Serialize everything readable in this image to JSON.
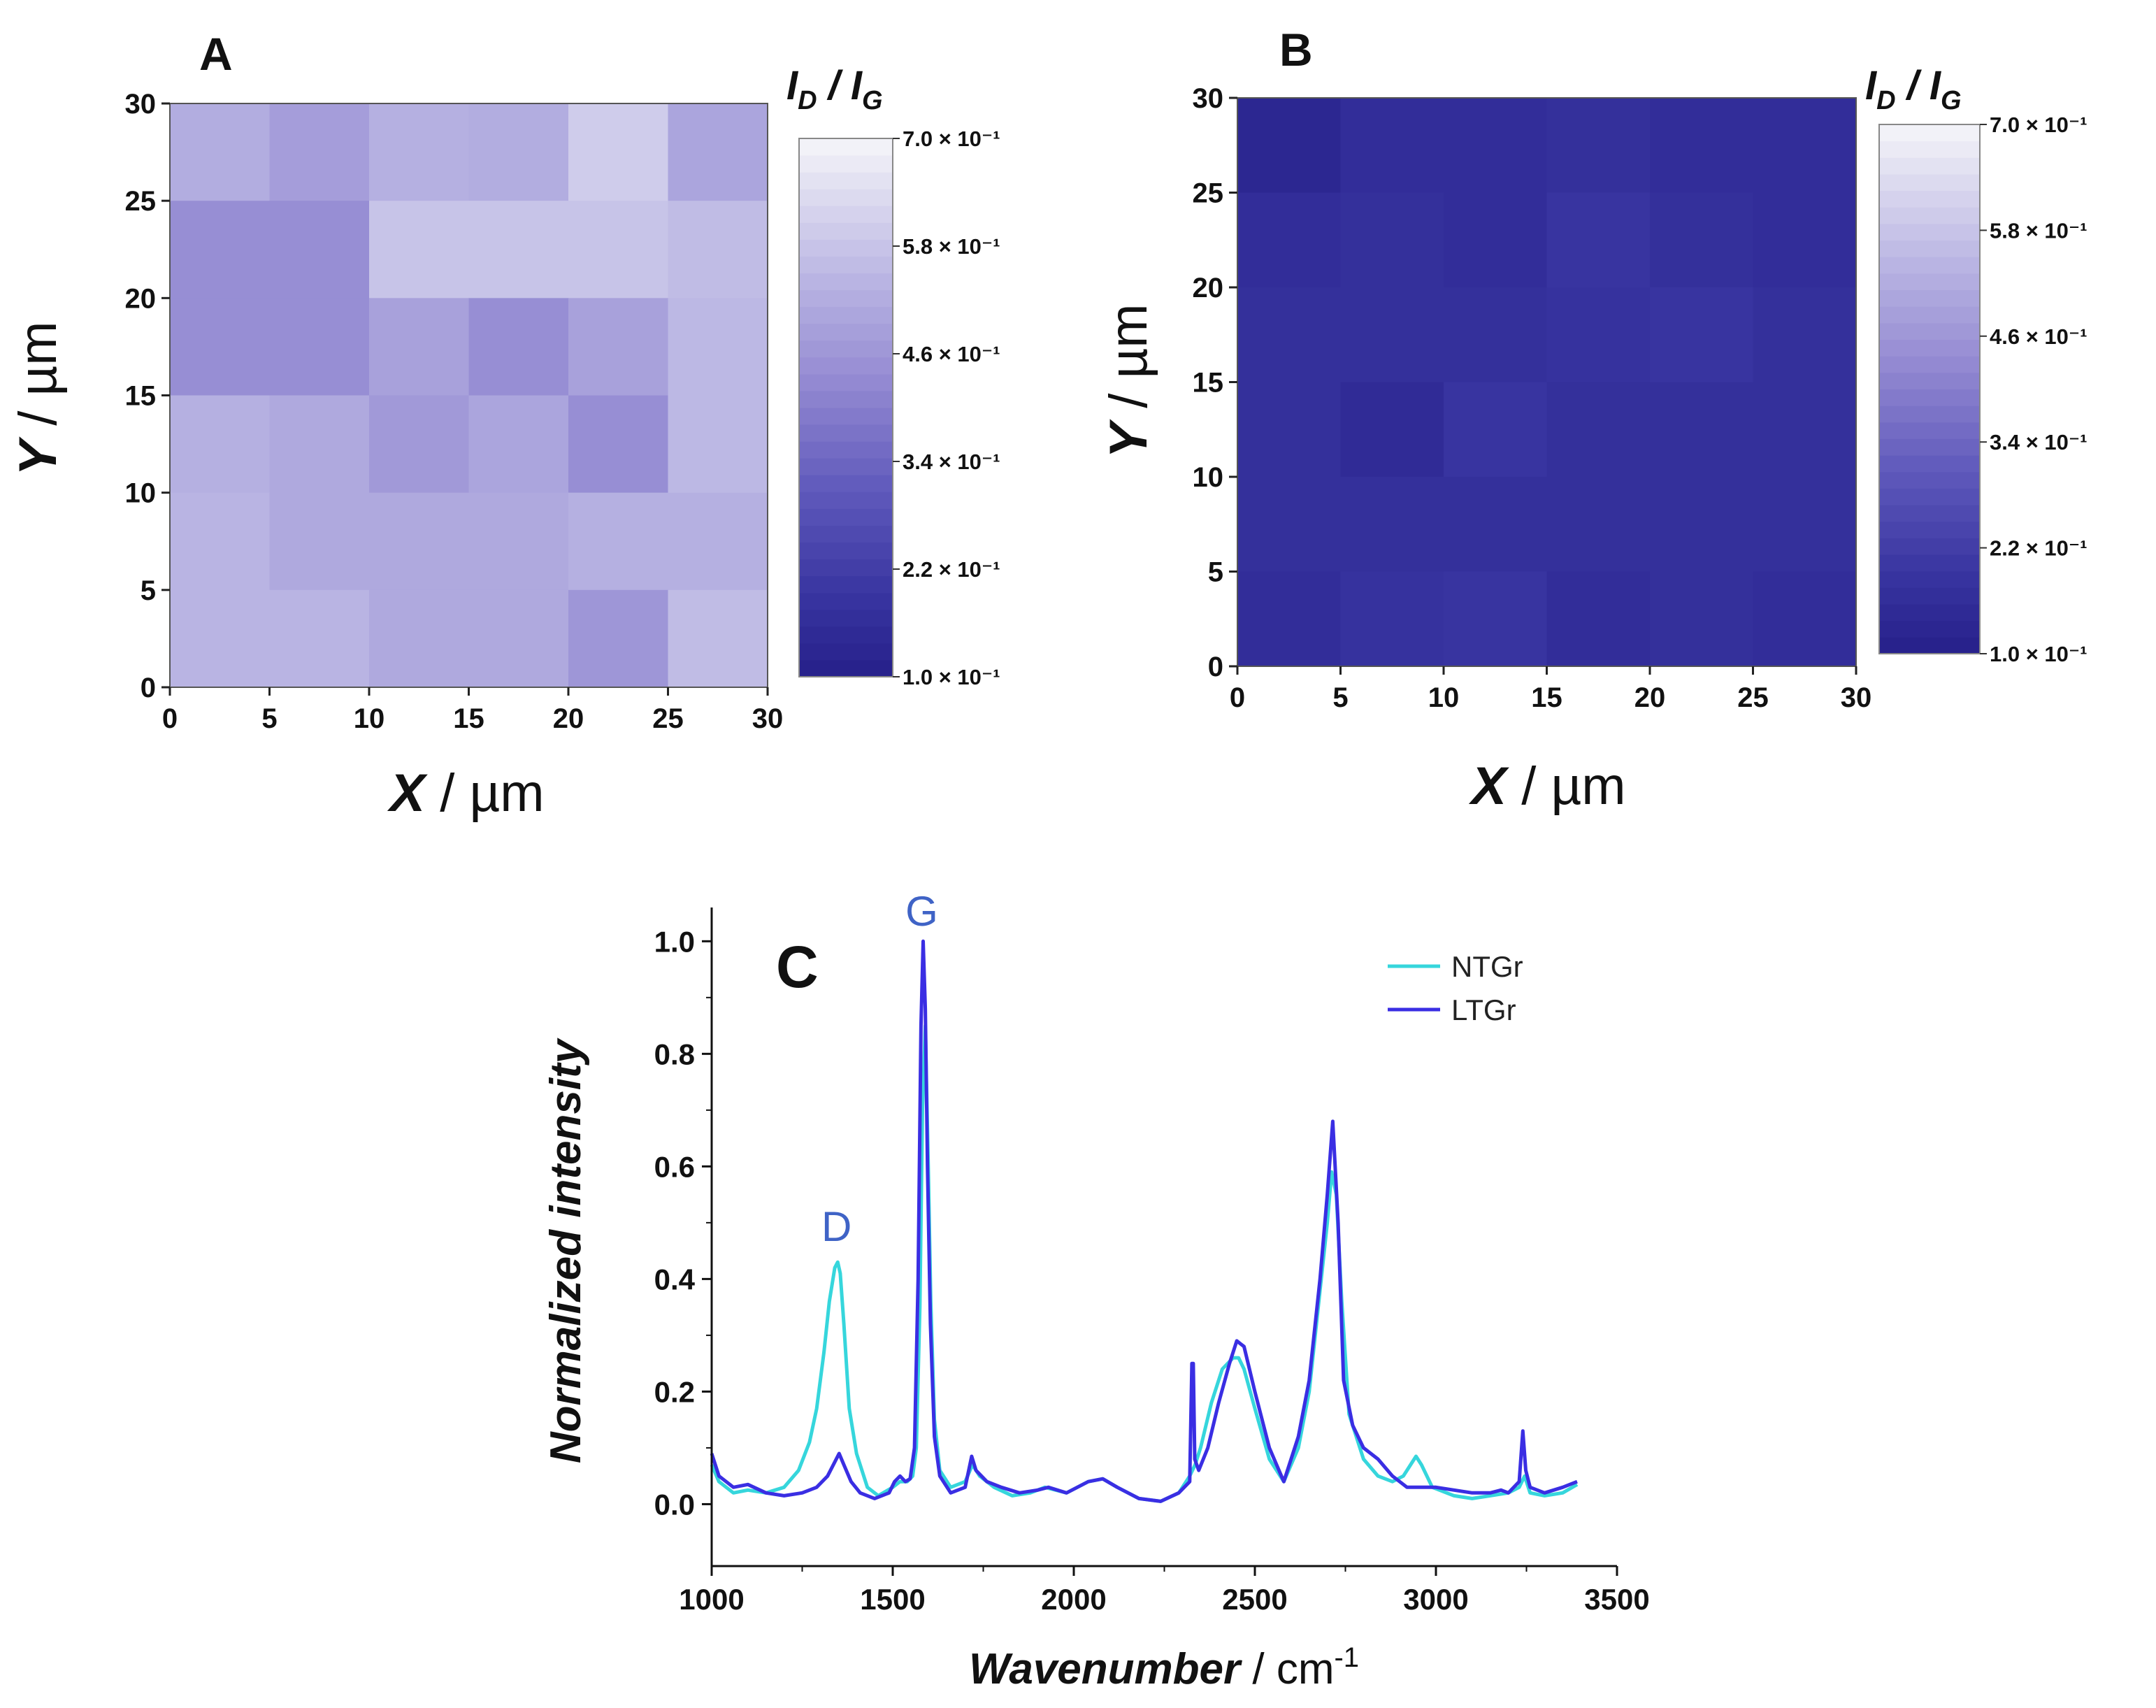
{
  "figure": {
    "panels": [
      "A",
      "B",
      "C"
    ]
  },
  "chart_data": [
    {
      "panel": "A",
      "type": "heatmap",
      "xlabel_var": "X",
      "xlabel_unit": " / µm",
      "ylabel_var": "Y",
      "ylabel_unit": " / µm",
      "x_ticks": [
        "0",
        "5",
        "10",
        "15",
        "20",
        "25",
        "30"
      ],
      "y_ticks": [
        "0",
        "5",
        "10",
        "15",
        "20",
        "25",
        "30"
      ],
      "xlim": [
        0,
        30
      ],
      "ylim": [
        0,
        30
      ],
      "cell_size_um": 5,
      "colorbar_title": "ID / IG",
      "colorbar_title_parts": {
        "I1": "I",
        "sub1": "D",
        "sep": " / ",
        "I2": "I",
        "sub2": "G"
      },
      "colorbar_range": [
        0.1,
        0.7
      ],
      "colorbar_ticks": [
        "1.0 × 10⁻¹",
        "2.2 × 10⁻¹",
        "3.4 × 10⁻¹",
        "4.6 × 10⁻¹",
        "5.8 × 10⁻¹",
        "7.0 × 10⁻¹"
      ],
      "colorbar_tick_values": [
        0.1,
        0.22,
        0.34,
        0.46,
        0.58,
        0.7
      ],
      "grid_rows_top_to_bottom": [
        [
          0.52,
          0.48,
          0.53,
          0.52,
          0.6,
          0.5
        ],
        [
          0.44,
          0.44,
          0.58,
          0.58,
          0.58,
          0.56
        ],
        [
          0.44,
          0.44,
          0.49,
          0.44,
          0.49,
          0.55
        ],
        [
          0.53,
          0.51,
          0.47,
          0.5,
          0.44,
          0.55
        ],
        [
          0.54,
          0.51,
          0.51,
          0.51,
          0.53,
          0.53
        ],
        [
          0.54,
          0.54,
          0.51,
          0.51,
          0.46,
          0.56
        ]
      ]
    },
    {
      "panel": "B",
      "type": "heatmap",
      "xlabel_var": "X",
      "xlabel_unit": " / µm",
      "ylabel_var": "Y",
      "ylabel_unit": " / µm",
      "x_ticks": [
        "0",
        "5",
        "10",
        "15",
        "20",
        "25",
        "30"
      ],
      "y_ticks": [
        "0",
        "5",
        "10",
        "15",
        "20",
        "25",
        "30"
      ],
      "xlim": [
        0,
        30
      ],
      "ylim": [
        0,
        30
      ],
      "cell_size_um": 5,
      "colorbar_title": "ID / IG",
      "colorbar_title_parts": {
        "I1": "I",
        "sub1": "D",
        "sep": " / ",
        "I2": "I",
        "sub2": "G"
      },
      "colorbar_range": [
        0.1,
        0.7
      ],
      "colorbar_ticks": [
        "1.0 × 10⁻¹",
        "2.2 × 10⁻¹",
        "3.4 × 10⁻¹",
        "4.6 × 10⁻¹",
        "5.8 × 10⁻¹",
        "7.0 × 10⁻¹"
      ],
      "colorbar_tick_values": [
        0.1,
        0.22,
        0.34,
        0.46,
        0.58,
        0.7
      ],
      "grid_rows_top_to_bottom": [
        [
          0.13,
          0.16,
          0.16,
          0.17,
          0.16,
          0.16
        ],
        [
          0.16,
          0.17,
          0.16,
          0.19,
          0.17,
          0.16
        ],
        [
          0.17,
          0.17,
          0.17,
          0.18,
          0.19,
          0.17
        ],
        [
          0.17,
          0.15,
          0.19,
          0.17,
          0.17,
          0.17
        ],
        [
          0.17,
          0.17,
          0.17,
          0.17,
          0.17,
          0.17
        ],
        [
          0.16,
          0.18,
          0.19,
          0.16,
          0.17,
          0.16
        ]
      ]
    },
    {
      "panel": "C",
      "type": "line",
      "xlabel": "Wavenumber",
      "xlabel_unit": " / cm",
      "xlabel_sup": "-1",
      "ylabel": "Normalized intensity",
      "xlim": [
        1000,
        3500
      ],
      "ylim": [
        -0.11,
        1.06
      ],
      "x_ticks": [
        "1000",
        "1500",
        "2000",
        "2500",
        "3000",
        "3500"
      ],
      "x_tick_values": [
        1000,
        1500,
        2000,
        2500,
        3000,
        3500
      ],
      "y_ticks": [
        "0.0",
        "0.2",
        "0.4",
        "0.6",
        "0.8",
        "1.0"
      ],
      "y_tick_values": [
        0.0,
        0.2,
        0.4,
        0.6,
        0.8,
        1.0
      ],
      "annotations": [
        {
          "text": "D",
          "x": 1345,
          "y": 0.46
        },
        {
          "text": "G",
          "x": 1580,
          "y": 1.02
        }
      ],
      "legend": {
        "placement": "top-right",
        "entries": [
          "NTGr",
          "LTGr"
        ]
      },
      "series": [
        {
          "name": "NTGr",
          "color": "#36d6dc",
          "x": [
            1000,
            1020,
            1060,
            1100,
            1150,
            1200,
            1240,
            1270,
            1290,
            1310,
            1325,
            1340,
            1348,
            1355,
            1365,
            1380,
            1400,
            1430,
            1460,
            1500,
            1520,
            1540,
            1555,
            1565,
            1575,
            1582,
            1590,
            1598,
            1605,
            1615,
            1630,
            1660,
            1700,
            1720,
            1740,
            1780,
            1830,
            1880,
            1920,
            1980,
            2040,
            2080,
            2120,
            2180,
            2240,
            2290,
            2320,
            2335,
            2350,
            2380,
            2410,
            2440,
            2455,
            2470,
            2500,
            2540,
            2580,
            2620,
            2650,
            2680,
            2700,
            2712,
            2725,
            2740,
            2760,
            2800,
            2840,
            2880,
            2910,
            2930,
            2945,
            2960,
            2990,
            3050,
            3100,
            3150,
            3200,
            3230,
            3245,
            3260,
            3300,
            3350,
            3390
          ],
          "y": [
            0.07,
            0.04,
            0.02,
            0.025,
            0.02,
            0.03,
            0.06,
            0.11,
            0.17,
            0.27,
            0.36,
            0.42,
            0.43,
            0.41,
            0.32,
            0.17,
            0.09,
            0.03,
            0.015,
            0.03,
            0.04,
            0.04,
            0.05,
            0.1,
            0.35,
            0.7,
            0.85,
            0.6,
            0.36,
            0.15,
            0.06,
            0.03,
            0.04,
            0.07,
            0.05,
            0.03,
            0.015,
            0.02,
            0.03,
            0.02,
            0.04,
            0.045,
            0.03,
            0.01,
            0.005,
            0.02,
            0.05,
            0.07,
            0.1,
            0.18,
            0.24,
            0.26,
            0.26,
            0.24,
            0.17,
            0.08,
            0.04,
            0.1,
            0.2,
            0.38,
            0.5,
            0.59,
            0.55,
            0.36,
            0.16,
            0.08,
            0.05,
            0.04,
            0.05,
            0.07,
            0.085,
            0.07,
            0.03,
            0.015,
            0.01,
            0.015,
            0.02,
            0.03,
            0.05,
            0.02,
            0.015,
            0.02,
            0.035
          ]
        },
        {
          "name": "LTGr",
          "color": "#3a2ee3",
          "x": [
            1000,
            1020,
            1060,
            1100,
            1150,
            1200,
            1250,
            1290,
            1320,
            1340,
            1352,
            1365,
            1385,
            1410,
            1450,
            1490,
            1505,
            1520,
            1535,
            1548,
            1560,
            1570,
            1578,
            1584,
            1590,
            1596,
            1604,
            1615,
            1630,
            1660,
            1700,
            1718,
            1730,
            1760,
            1800,
            1850,
            1900,
            1930,
            1980,
            2040,
            2080,
            2120,
            2180,
            2240,
            2290,
            2320,
            2326,
            2330,
            2334,
            2345,
            2370,
            2400,
            2430,
            2450,
            2470,
            2500,
            2540,
            2580,
            2620,
            2650,
            2680,
            2700,
            2715,
            2730,
            2745,
            2770,
            2800,
            2840,
            2880,
            2920,
            2960,
            3000,
            3050,
            3100,
            3150,
            3180,
            3200,
            3230,
            3240,
            3248,
            3260,
            3300,
            3350,
            3390
          ],
          "y": [
            0.09,
            0.05,
            0.03,
            0.035,
            0.02,
            0.015,
            0.02,
            0.03,
            0.05,
            0.075,
            0.09,
            0.07,
            0.04,
            0.02,
            0.01,
            0.02,
            0.04,
            0.05,
            0.04,
            0.045,
            0.1,
            0.4,
            0.85,
            1.0,
            0.88,
            0.6,
            0.32,
            0.12,
            0.05,
            0.02,
            0.03,
            0.085,
            0.06,
            0.04,
            0.03,
            0.02,
            0.025,
            0.03,
            0.02,
            0.04,
            0.045,
            0.03,
            0.01,
            0.005,
            0.02,
            0.04,
            0.25,
            0.25,
            0.08,
            0.06,
            0.1,
            0.18,
            0.25,
            0.29,
            0.28,
            0.2,
            0.1,
            0.04,
            0.12,
            0.22,
            0.4,
            0.55,
            0.68,
            0.5,
            0.22,
            0.14,
            0.1,
            0.08,
            0.05,
            0.03,
            0.03,
            0.03,
            0.025,
            0.02,
            0.02,
            0.025,
            0.02,
            0.04,
            0.13,
            0.06,
            0.03,
            0.02,
            0.03,
            0.04
          ]
        }
      ]
    }
  ]
}
